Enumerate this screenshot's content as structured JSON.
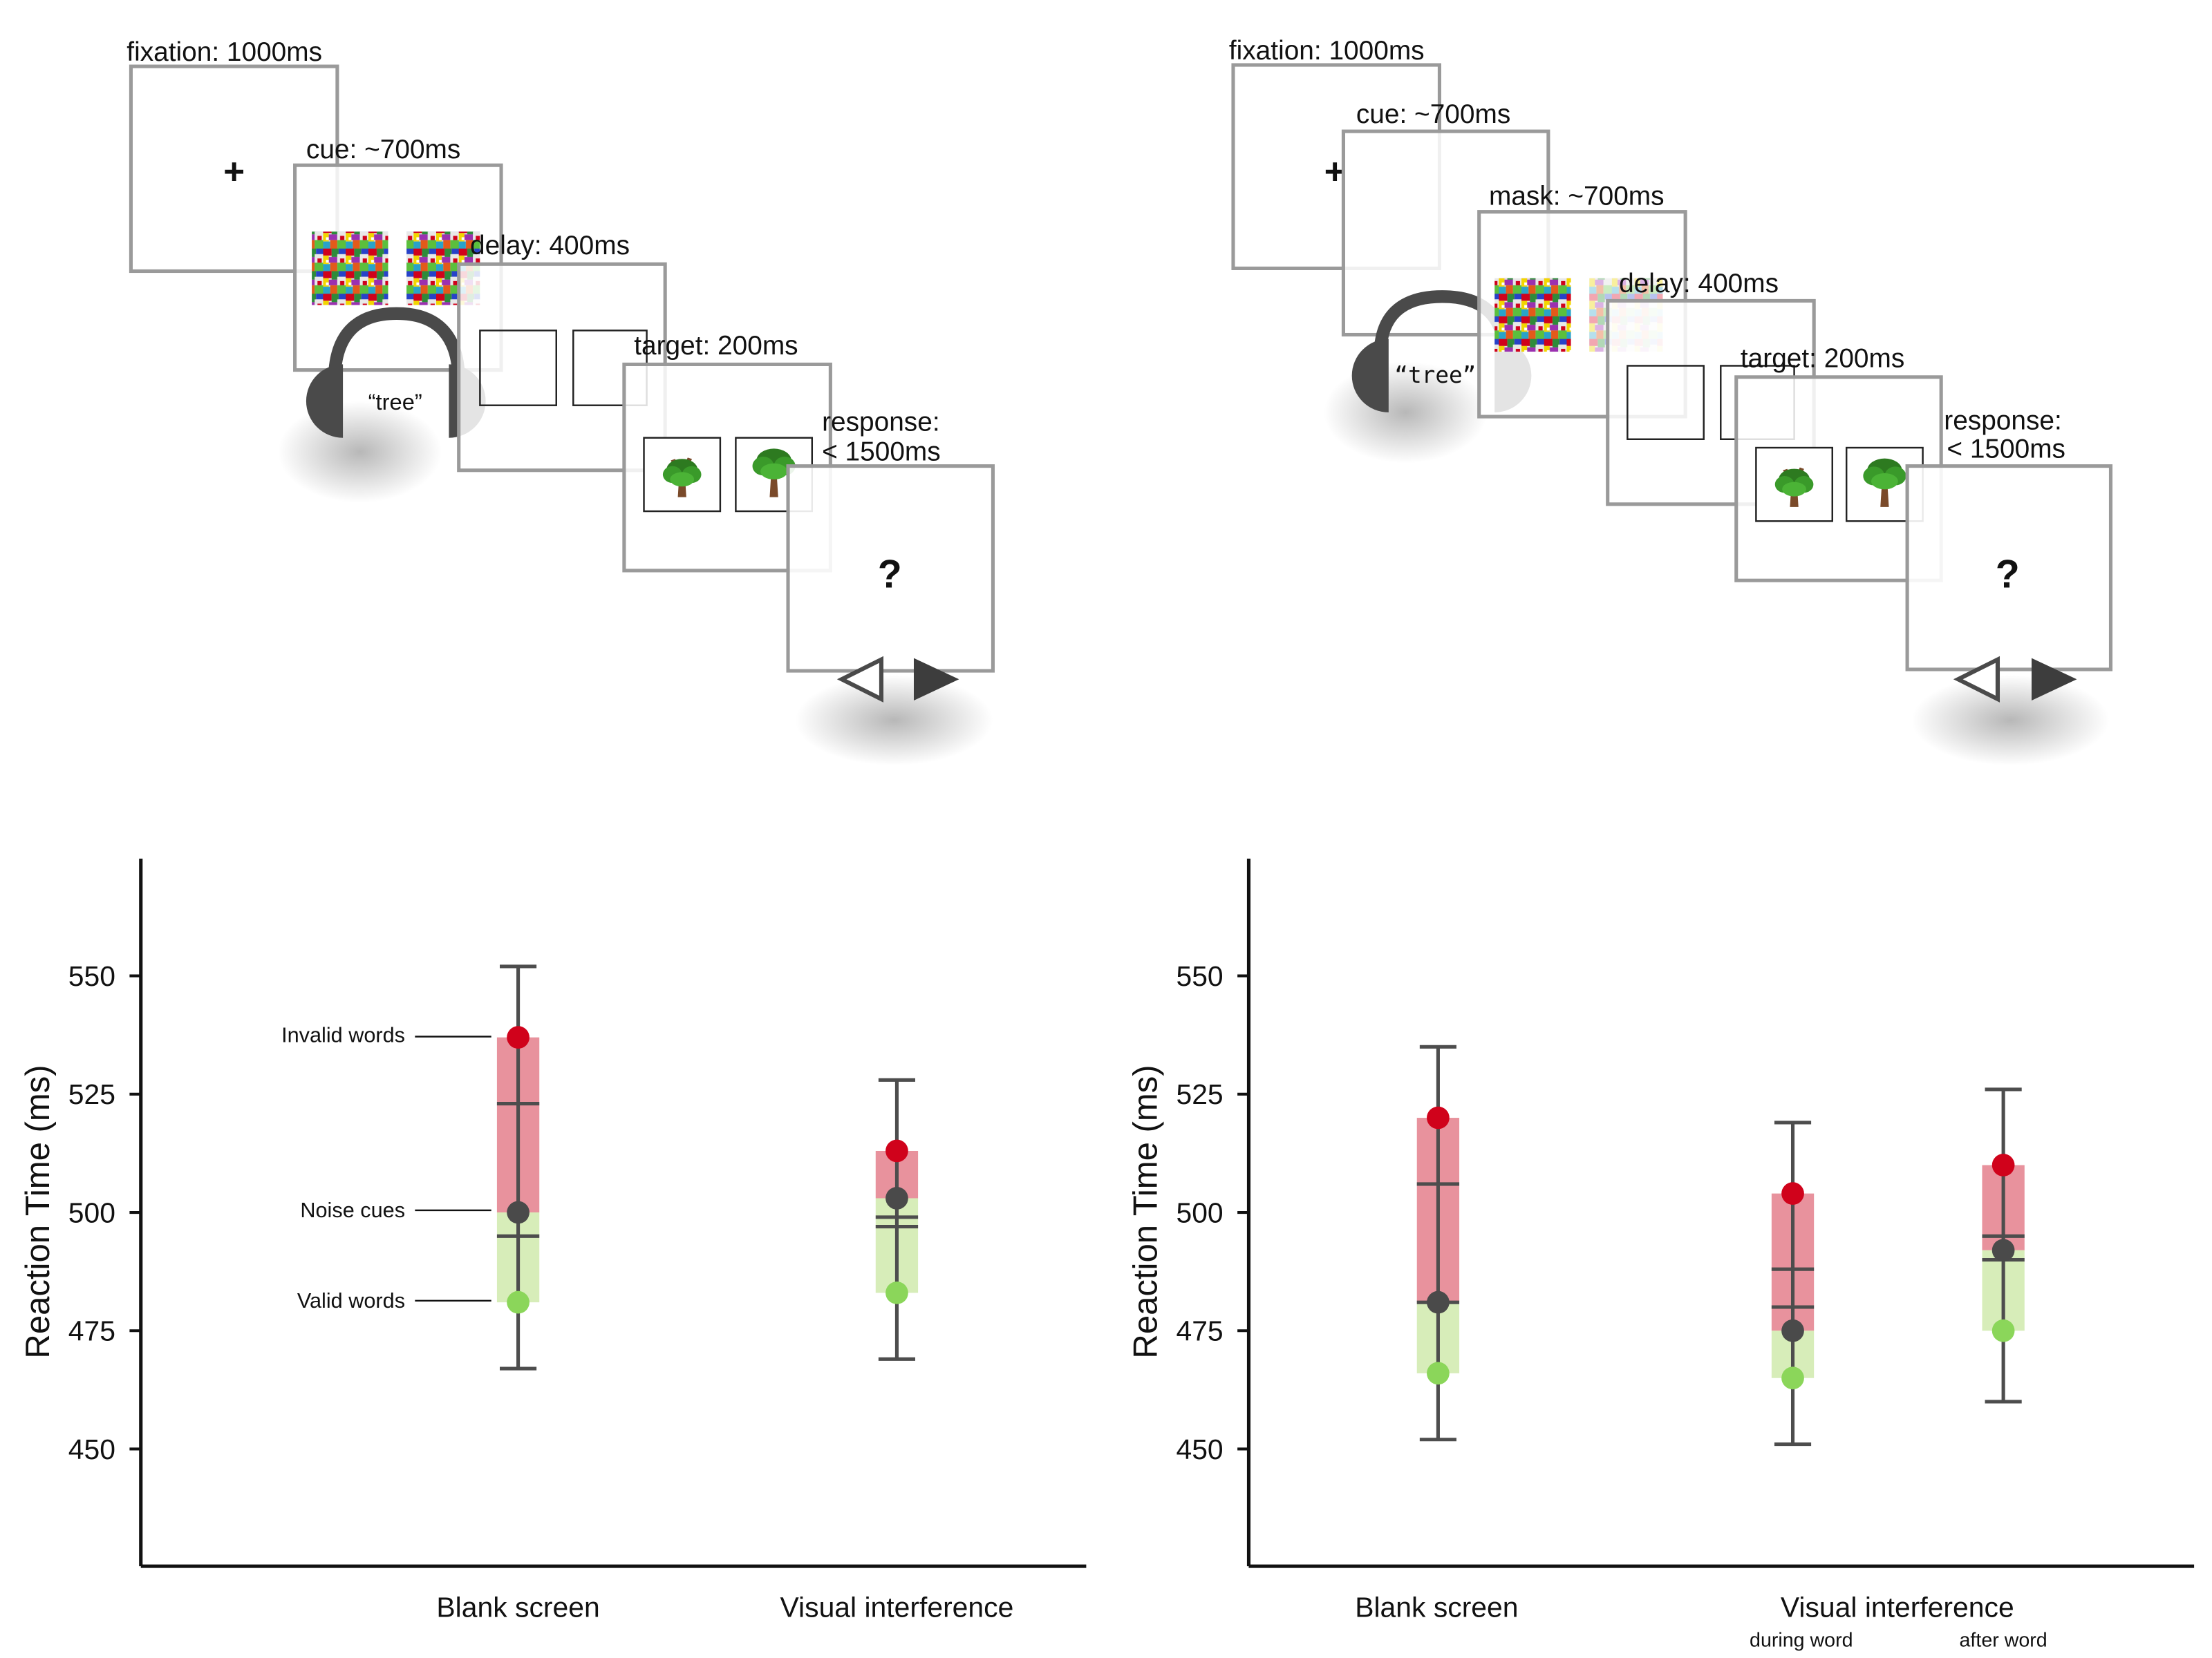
{
  "colors": {
    "frame": "#9a9a9a",
    "ink": "#222222",
    "error_bar": "#4d4d4d",
    "invalid_fill": "#e8929d",
    "valid_fill": "#d7edb9",
    "invalid_dot": "#d0021b",
    "noise_dot": "#4a4a4a",
    "valid_dot": "#8bd65a"
  },
  "left_diagram": {
    "frames": [
      {
        "label": "fixation: 1000ms",
        "content": "fixation-cross",
        "glyph": "+"
      },
      {
        "label": "cue: ~700ms",
        "content": "noise-patches"
      },
      {
        "label": "delay: 400ms",
        "content": "blank-squares"
      },
      {
        "label": "target: 200ms",
        "content": "tree-pictures"
      },
      {
        "label_line1": "response:",
        "label_line2": "< 1500ms",
        "content": "response-screen",
        "glyph": "?"
      }
    ],
    "audio_word": "“tree”",
    "icons": [
      "headphones-icon",
      "tree-icon",
      "left-arrow-key-icon",
      "right-arrow-key-icon"
    ]
  },
  "right_diagram": {
    "frames": [
      {
        "label": "fixation: 1000ms",
        "content": "fixation-cross",
        "glyph": "+"
      },
      {
        "label": "cue: ~700ms",
        "content": "blank"
      },
      {
        "label": "mask: ~700ms",
        "content": "noise-patches"
      },
      {
        "label": "delay: 400ms",
        "content": "blank-squares"
      },
      {
        "label": "target: 200ms",
        "content": "tree-pictures"
      },
      {
        "label_line1": "response:",
        "label_line2": "< 1500ms",
        "content": "response-screen",
        "glyph": "?"
      }
    ],
    "audio_word": "“tree”",
    "icons": [
      "headphones-icon",
      "tree-icon",
      "left-arrow-key-icon",
      "right-arrow-key-icon"
    ]
  },
  "chart_data": [
    {
      "type": "interval-dot",
      "ylabel": "Reaction Time (ms)",
      "yticks": [
        450,
        475,
        500,
        525,
        550
      ],
      "ylim": [
        425,
        575
      ],
      "legend_annotations": [
        "Invalid words",
        "Noise cues",
        "Valid words"
      ],
      "categories": [
        {
          "label": "Blank screen",
          "sublabel": "",
          "invalid": 537,
          "noise": 500,
          "valid": 481,
          "err_low": 467,
          "err_high": 552,
          "mid_upper": 523,
          "mid_lower": 495
        },
        {
          "label": "Visual interference",
          "sublabel": "",
          "invalid": 513,
          "noise": 503,
          "valid": 483,
          "err_low": 469,
          "err_high": 528,
          "mid_upper": 499,
          "mid_lower": 497
        }
      ]
    },
    {
      "type": "interval-dot",
      "ylabel": "Reaction Time (ms)",
      "yticks": [
        450,
        475,
        500,
        525,
        550
      ],
      "ylim": [
        425,
        575
      ],
      "group_label": "Visual interference",
      "categories": [
        {
          "label": "Blank screen",
          "sublabel": "",
          "invalid": 520,
          "noise": 481,
          "valid": 466,
          "err_low": 452,
          "err_high": 535,
          "mid_upper": 506,
          "mid_lower": 481
        },
        {
          "label": "",
          "sublabel": "during word",
          "invalid": 504,
          "noise": 475,
          "valid": 465,
          "err_low": 451,
          "err_high": 519,
          "mid_upper": 488,
          "mid_lower": 480
        },
        {
          "label": "",
          "sublabel": "after word",
          "invalid": 510,
          "noise": 492,
          "valid": 475,
          "err_low": 460,
          "err_high": 526,
          "mid_upper": 495,
          "mid_lower": 490
        }
      ]
    }
  ]
}
